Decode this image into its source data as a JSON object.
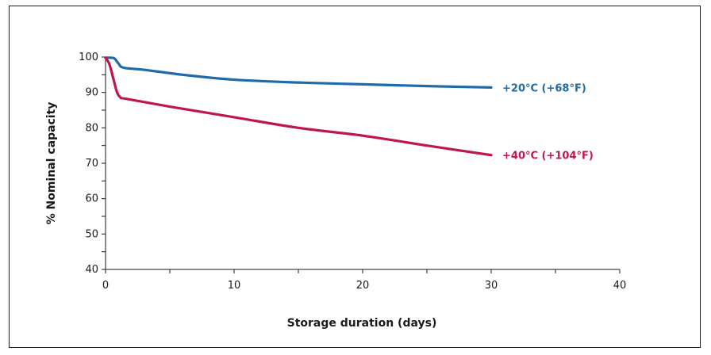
{
  "chart_data": {
    "type": "line",
    "title": "",
    "xlabel": "Storage duration (days)",
    "ylabel": "% Nominal capacity",
    "xlim": [
      0,
      40
    ],
    "ylim": [
      40,
      100
    ],
    "xticks": [
      0,
      10,
      20,
      30,
      40
    ],
    "yticks": [
      40,
      50,
      60,
      70,
      80,
      90,
      100
    ],
    "grid": false,
    "series": [
      {
        "name": "+20°C (+68°F)",
        "color": "#1f6aa8",
        "x": [
          0,
          0.4,
          0.7,
          1.0,
          1.4,
          3,
          6,
          10,
          15,
          20,
          25,
          30
        ],
        "y": [
          99.8,
          99.8,
          99.6,
          98.2,
          97.0,
          96.4,
          95.0,
          93.6,
          92.8,
          92.3,
          91.8,
          91.4
        ]
      },
      {
        "name": "+40°C (+104°F)",
        "color": "#c0164a",
        "x": [
          0,
          0.3,
          0.6,
          0.9,
          1.2,
          1.6,
          5,
          10,
          15,
          20,
          25,
          30
        ],
        "y": [
          99.8,
          98.0,
          94.0,
          90.0,
          88.5,
          88.2,
          86.0,
          83.0,
          80.0,
          77.8,
          75.0,
          72.3
        ]
      }
    ]
  }
}
